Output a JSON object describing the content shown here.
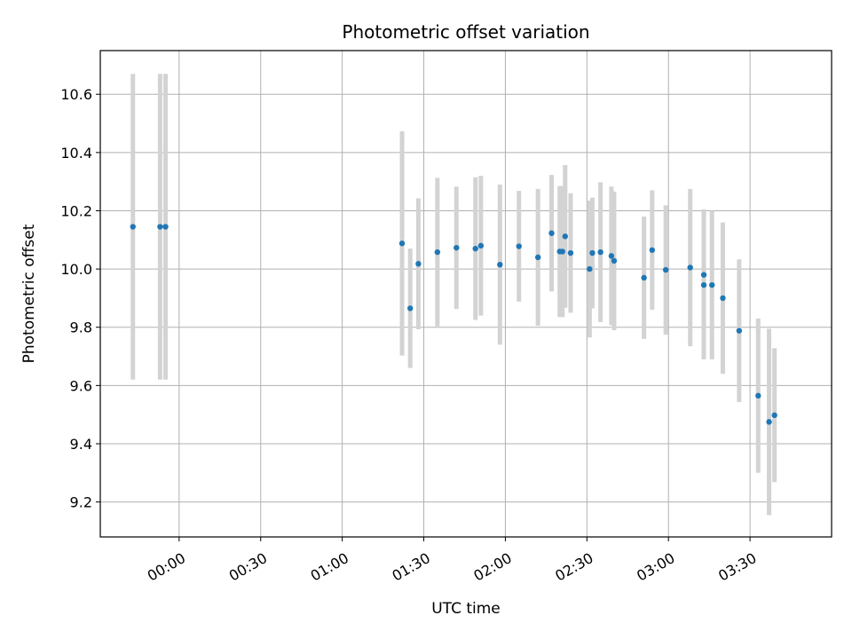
{
  "chart_data": {
    "type": "scatter",
    "title": "Photometric offset variation",
    "xlabel": "UTC time",
    "ylabel": "Photometric offset",
    "x_ticks": [
      "00:00",
      "00:30",
      "01:00",
      "01:30",
      "02:00",
      "02:30",
      "03:00",
      "03:30"
    ],
    "y_ticks": [
      "9.2",
      "9.4",
      "9.6",
      "9.8",
      "10.0",
      "10.2",
      "10.4",
      "10.6"
    ],
    "xlim": [
      "-00:29",
      "04:00"
    ],
    "ylim": [
      9.08,
      10.75
    ],
    "grid": true,
    "colors": {
      "point": "#1f77b4",
      "errorbar": "#d3d3d3",
      "grid": "#b0b0b0"
    },
    "points": [
      {
        "x": "-00:17",
        "y": 10.145,
        "err": 0.525
      },
      {
        "x": "-00:07",
        "y": 10.145,
        "err": 0.525
      },
      {
        "x": "-00:05",
        "y": 10.145,
        "err": 0.525
      },
      {
        "x": "01:22",
        "y": 10.088,
        "err": 0.385
      },
      {
        "x": "01:25",
        "y": 9.865,
        "err": 0.205
      },
      {
        "x": "01:28",
        "y": 10.018,
        "err": 0.225
      },
      {
        "x": "01:35",
        "y": 10.058,
        "err": 0.255
      },
      {
        "x": "01:42",
        "y": 10.073,
        "err": 0.21
      },
      {
        "x": "01:49",
        "y": 10.07,
        "err": 0.245
      },
      {
        "x": "01:51",
        "y": 10.08,
        "err": 0.24
      },
      {
        "x": "01:58",
        "y": 10.015,
        "err": 0.275
      },
      {
        "x": "02:05",
        "y": 10.078,
        "err": 0.19
      },
      {
        "x": "02:12",
        "y": 10.04,
        "err": 0.235
      },
      {
        "x": "02:17",
        "y": 10.123,
        "err": 0.2
      },
      {
        "x": "02:20",
        "y": 10.06,
        "err": 0.225
      },
      {
        "x": "02:21",
        "y": 10.06,
        "err": 0.225
      },
      {
        "x": "02:22",
        "y": 10.112,
        "err": 0.245
      },
      {
        "x": "02:24",
        "y": 10.055,
        "err": 0.205
      },
      {
        "x": "02:31",
        "y": 10.0,
        "err": 0.235
      },
      {
        "x": "02:32",
        "y": 10.055,
        "err": 0.19
      },
      {
        "x": "02:35",
        "y": 10.058,
        "err": 0.24
      },
      {
        "x": "02:39",
        "y": 10.045,
        "err": 0.238
      },
      {
        "x": "02:40",
        "y": 10.028,
        "err": 0.238
      },
      {
        "x": "02:51",
        "y": 9.97,
        "err": 0.21
      },
      {
        "x": "02:54",
        "y": 10.065,
        "err": 0.205
      },
      {
        "x": "02:59",
        "y": 9.997,
        "err": 0.222
      },
      {
        "x": "03:08",
        "y": 10.005,
        "err": 0.27
      },
      {
        "x": "03:13",
        "y": 9.98,
        "err": 0.225
      },
      {
        "x": "03:13",
        "y": 9.945,
        "err": 0.255
      },
      {
        "x": "03:16",
        "y": 9.945,
        "err": 0.255
      },
      {
        "x": "03:20",
        "y": 9.9,
        "err": 0.26
      },
      {
        "x": "03:26",
        "y": 9.788,
        "err": 0.245
      },
      {
        "x": "03:33",
        "y": 9.565,
        "err": 0.265
      },
      {
        "x": "03:37",
        "y": 9.475,
        "err": 0.32
      },
      {
        "x": "03:39",
        "y": 9.498,
        "err": 0.23
      }
    ]
  }
}
